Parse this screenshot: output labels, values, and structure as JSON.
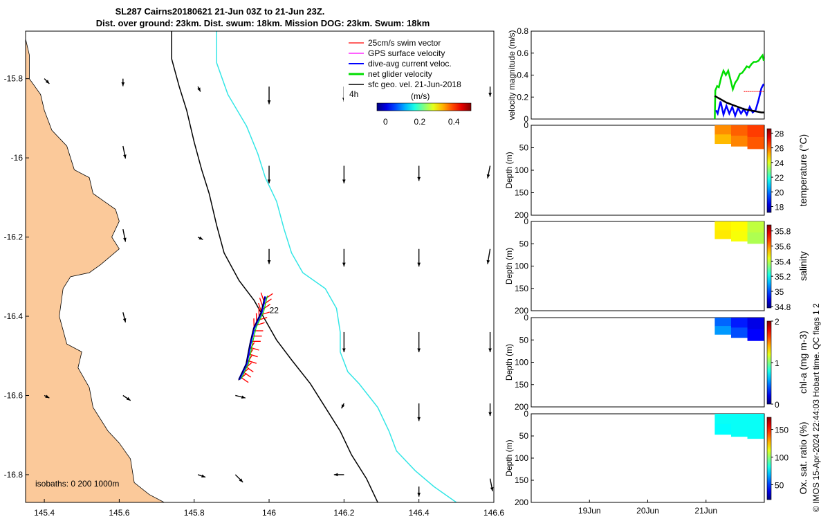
{
  "title_line1": "SL287 Cairns20180621 21-Jun 03Z to 21-Jun 23Z.",
  "title_line2": "Dist. over ground: 23km. Dist. swum: 18km. Mission DOG: 23km. Swum: 18km",
  "copyright": "© IMOS 15-Apr-2024 22:44:03 Hobart time. QC flags 1  2",
  "colors": {
    "land": "#fbc99a",
    "isobath_0": "#000000",
    "isobath_200": "#000000",
    "isobath_1000": "#33e6e6",
    "swim": "#ff0000",
    "gps": "#ff00ff",
    "dive": "#0000ff",
    "net": "#00dd00",
    "geo": "#000000"
  },
  "chart_data": [
    {
      "type": "map",
      "xlim": [
        145.35,
        146.6
      ],
      "ylim": [
        -16.87,
        -15.68
      ],
      "x_ticks": [
        145.4,
        145.6,
        145.8,
        146,
        146.2,
        146.4,
        146.6
      ],
      "x_tick_labels": [
        "145.4",
        "145.6",
        "145.8",
        "146",
        "146.2",
        "146.4",
        "146.6"
      ],
      "y_ticks": [
        -15.8,
        -16,
        -16.2,
        -16.4,
        -16.6,
        -16.8
      ],
      "y_tick_labels": [
        "-15.8",
        "-16",
        "-16.2",
        "-16.4",
        "-16.6",
        "-16.8"
      ],
      "legend": {
        "entries": [
          "25cm/s swim vector",
          "GPS surface velocity",
          "dive-avg current veloc.",
          "net glider velocity",
          "sfc geo. vel. 21-Jun-2018"
        ],
        "time_label": "4h",
        "colorbar_label": "(m/s)",
        "colorbar_ticks": [
          "0",
          "0.2",
          "0.4"
        ],
        "colorbar_range": [
          -0.05,
          0.5
        ]
      },
      "isobaths_label": "isobaths: 0   200  1000m",
      "isobaths": [
        "0",
        "200",
        "1000"
      ],
      "annotation": "22",
      "coastline": [
        [
          145.35,
          -15.7
        ],
        [
          145.36,
          -15.74
        ],
        [
          145.36,
          -15.8
        ],
        [
          145.39,
          -15.84
        ],
        [
          145.4,
          -15.88
        ],
        [
          145.42,
          -15.93
        ],
        [
          145.46,
          -15.97
        ],
        [
          145.48,
          -16.03
        ],
        [
          145.52,
          -16.05
        ],
        [
          145.53,
          -16.09
        ],
        [
          145.56,
          -16.11
        ],
        [
          145.59,
          -16.13
        ],
        [
          145.6,
          -16.16
        ],
        [
          145.58,
          -16.2
        ],
        [
          145.6,
          -16.23
        ],
        [
          145.55,
          -16.27
        ],
        [
          145.52,
          -16.29
        ],
        [
          145.47,
          -16.3
        ],
        [
          145.45,
          -16.33
        ],
        [
          145.44,
          -16.4
        ],
        [
          145.46,
          -16.47
        ],
        [
          145.5,
          -16.49
        ],
        [
          145.49,
          -16.53
        ],
        [
          145.52,
          -16.58
        ],
        [
          145.53,
          -16.63
        ],
        [
          145.57,
          -16.69
        ],
        [
          145.6,
          -16.72
        ],
        [
          145.63,
          -16.76
        ],
        [
          145.64,
          -16.82
        ],
        [
          145.68,
          -16.85
        ],
        [
          145.72,
          -16.87
        ]
      ],
      "iso0": [
        [
          145.74,
          -15.68
        ],
        [
          145.74,
          -15.75
        ],
        [
          145.76,
          -15.82
        ],
        [
          145.78,
          -15.88
        ],
        [
          145.8,
          -15.96
        ],
        [
          145.82,
          -16.03
        ],
        [
          145.84,
          -16.09
        ],
        [
          145.86,
          -16.17
        ],
        [
          145.88,
          -16.24
        ],
        [
          145.92,
          -16.31
        ],
        [
          145.96,
          -16.36
        ],
        [
          145.99,
          -16.41
        ],
        [
          146.02,
          -16.46
        ],
        [
          146.06,
          -16.51
        ],
        [
          146.11,
          -16.57
        ],
        [
          146.15,
          -16.63
        ],
        [
          146.19,
          -16.69
        ],
        [
          146.22,
          -16.75
        ],
        [
          146.26,
          -16.81
        ],
        [
          146.29,
          -16.87
        ]
      ],
      "iso1000": [
        [
          145.86,
          -15.68
        ],
        [
          145.86,
          -15.76
        ],
        [
          145.89,
          -15.84
        ],
        [
          145.94,
          -15.92
        ],
        [
          145.97,
          -15.99
        ],
        [
          145.99,
          -16.05
        ],
        [
          146.02,
          -16.11
        ],
        [
          146.04,
          -16.18
        ],
        [
          146.06,
          -16.24
        ],
        [
          146.09,
          -16.29
        ],
        [
          146.15,
          -16.33
        ],
        [
          146.18,
          -16.38
        ],
        [
          146.19,
          -16.44
        ],
        [
          146.19,
          -16.49
        ],
        [
          146.21,
          -16.54
        ],
        [
          146.24,
          -16.57
        ],
        [
          146.29,
          -16.63
        ],
        [
          146.32,
          -16.69
        ],
        [
          146.34,
          -16.74
        ],
        [
          146.39,
          -16.79
        ],
        [
          146.44,
          -16.83
        ],
        [
          146.5,
          -16.87
        ]
      ],
      "track": [
        [
          145.92,
          -16.56
        ],
        [
          145.94,
          -16.52
        ],
        [
          145.95,
          -16.47
        ],
        [
          145.96,
          -16.43
        ],
        [
          145.98,
          -16.39
        ],
        [
          145.99,
          -16.35
        ]
      ],
      "geo_vectors": {
        "scale": 0.55,
        "items": [
          [
            145.4,
            -15.8,
            0.02,
            -0.02
          ],
          [
            145.61,
            -15.8,
            0.0,
            -0.03
          ],
          [
            145.81,
            -15.82,
            0.01,
            -0.02
          ],
          [
            146.0,
            -15.82,
            0.0,
            -0.07
          ],
          [
            146.2,
            -15.82,
            0.0,
            -0.06
          ],
          [
            146.4,
            -15.82,
            0.0,
            -0.06
          ],
          [
            146.59,
            -15.82,
            0.0,
            -0.04
          ],
          [
            145.61,
            -15.97,
            0.01,
            -0.05
          ],
          [
            146.0,
            -16.02,
            0.0,
            -0.07
          ],
          [
            146.2,
            -16.02,
            0.0,
            -0.07
          ],
          [
            146.4,
            -16.02,
            0.0,
            -0.06
          ],
          [
            146.59,
            -16.02,
            -0.01,
            -0.05
          ],
          [
            145.61,
            -16.18,
            0.01,
            -0.05
          ],
          [
            145.81,
            -16.2,
            0.02,
            -0.01
          ],
          [
            146.0,
            -16.23,
            0.0,
            -0.06
          ],
          [
            146.2,
            -16.23,
            0.0,
            -0.07
          ],
          [
            146.4,
            -16.23,
            0.0,
            -0.07
          ],
          [
            146.59,
            -16.23,
            -0.01,
            -0.06
          ],
          [
            145.61,
            -16.39,
            0.01,
            -0.04
          ],
          [
            146.2,
            -16.44,
            0.0,
            -0.08
          ],
          [
            146.4,
            -16.44,
            0.0,
            -0.08
          ],
          [
            146.59,
            -16.44,
            0.0,
            -0.08
          ],
          [
            145.4,
            -16.6,
            0.02,
            -0.01
          ],
          [
            145.61,
            -16.6,
            0.03,
            -0.02
          ],
          [
            145.91,
            -16.6,
            0.04,
            -0.01
          ],
          [
            146.2,
            -16.62,
            -0.01,
            -0.02
          ],
          [
            146.4,
            -16.62,
            0.0,
            -0.07
          ],
          [
            146.59,
            -16.62,
            0.0,
            -0.05
          ],
          [
            145.81,
            -16.8,
            0.03,
            -0.01
          ],
          [
            145.91,
            -16.8,
            0.03,
            -0.03
          ],
          [
            146.2,
            -16.8,
            -0.04,
            0.0
          ],
          [
            146.4,
            -16.83,
            0.0,
            -0.04
          ],
          [
            146.59,
            -16.81,
            0.01,
            -0.05
          ]
        ]
      }
    },
    {
      "type": "line",
      "ylabel": "velocity magnitude (m/s)",
      "ylim": [
        0,
        0.8
      ],
      "y_ticks": [
        0,
        0.2,
        0.4,
        0.6,
        0.8
      ],
      "y_tick_labels": [
        "0",
        "0.2",
        "0.4",
        "0.6",
        "0.8"
      ],
      "xlim": [
        18.0,
        22.0
      ],
      "series": [
        {
          "color": "#00dd00",
          "x": [
            21.15,
            21.16,
            21.19,
            21.22,
            21.26,
            21.3,
            21.34,
            21.38,
            21.42,
            21.46,
            21.5,
            21.54,
            21.58,
            21.62,
            21.66,
            21.7,
            21.74,
            21.78,
            21.82,
            21.86,
            21.9,
            21.94,
            21.97,
            21.99
          ],
          "y": [
            0.0,
            0.26,
            0.3,
            0.29,
            0.38,
            0.44,
            0.4,
            0.44,
            0.36,
            0.27,
            0.33,
            0.36,
            0.41,
            0.42,
            0.45,
            0.48,
            0.47,
            0.5,
            0.52,
            0.52,
            0.53,
            0.56,
            0.58,
            0.53
          ]
        },
        {
          "color": "#0000ff",
          "x": [
            21.17,
            21.2,
            21.25,
            21.3,
            21.35,
            21.4,
            21.45,
            21.5,
            21.55,
            21.6,
            21.65,
            21.7,
            21.75,
            21.8,
            21.85,
            21.9,
            21.95,
            21.99
          ],
          "y": [
            0.08,
            0.05,
            0.16,
            0.04,
            0.12,
            0.05,
            0.11,
            0.03,
            0.1,
            0.05,
            0.09,
            0.04,
            0.11,
            0.06,
            0.08,
            0.17,
            0.28,
            0.32
          ]
        },
        {
          "color": "#000000",
          "x": [
            21.15,
            21.25,
            21.35,
            21.45,
            21.55,
            21.65,
            21.75,
            21.85,
            21.95,
            22.0
          ],
          "y": [
            0.21,
            0.18,
            0.15,
            0.13,
            0.11,
            0.09,
            0.08,
            0.07,
            0.06,
            0.06
          ]
        },
        {
          "color": "#ff0000",
          "x": [
            21.65,
            21.99
          ],
          "y": [
            0.25,
            0.25
          ]
        }
      ]
    },
    {
      "type": "heatmap",
      "ylabel": "Depth (m)",
      "ylim": [
        0,
        200
      ],
      "y_ticks": [
        0,
        50,
        100,
        150,
        200
      ],
      "y_tick_labels": [
        "0",
        "50",
        "100",
        "150",
        "200"
      ],
      "colorbar_label": "temperature (°C)",
      "colorbar_range": [
        17.2,
        28.6
      ],
      "colorbar_ticks": [
        18,
        20,
        22,
        24,
        26,
        28
      ],
      "colorbar_tick_labels": [
        "18",
        "20",
        "22",
        "24",
        "26",
        "28"
      ],
      "x_range": [
        21.15,
        21.99
      ],
      "bottom_depth": [
        38,
        55
      ],
      "values": [
        [
          25.6,
          26.1,
          26.5
        ],
        [
          25.1,
          25.7,
          26.2
        ]
      ]
    },
    {
      "type": "heatmap",
      "ylabel": "Depth (m)",
      "ylim": [
        0,
        200
      ],
      "y_ticks": [
        0,
        50,
        100,
        150,
        200
      ],
      "y_tick_labels": [
        "0",
        "50",
        "100",
        "150",
        "200"
      ],
      "colorbar_label": "salinity",
      "colorbar_range": [
        34.78,
        35.88
      ],
      "colorbar_ticks": [
        34.8,
        35,
        35.2,
        35.4,
        35.6,
        35.8
      ],
      "colorbar_tick_labels": [
        "34.8",
        "35",
        "35.2",
        "35.4",
        "35.6",
        "35.8"
      ],
      "x_range": [
        21.15,
        21.99
      ],
      "bottom_depth": [
        36,
        52
      ],
      "values": [
        [
          35.48,
          35.47,
          35.4
        ],
        [
          35.49,
          35.46,
          35.38
        ]
      ]
    },
    {
      "type": "heatmap",
      "ylabel": "Depth (m)",
      "ylim": [
        0,
        200
      ],
      "y_ticks": [
        0,
        50,
        100,
        150,
        200
      ],
      "y_tick_labels": [
        "0",
        "50",
        "100",
        "150",
        "200"
      ],
      "colorbar_label": "chl-a (mg m-3)",
      "colorbar_range": [
        0,
        2
      ],
      "colorbar_ticks": [
        0,
        1,
        2
      ],
      "colorbar_tick_labels": [
        "0",
        "1",
        "2"
      ],
      "x_range": [
        21.15,
        21.99
      ],
      "bottom_depth": [
        34,
        55
      ],
      "values": [
        [
          0.45,
          0.3,
          0.2
        ],
        [
          0.55,
          0.4,
          0.25
        ]
      ]
    },
    {
      "type": "heatmap",
      "ylabel": "Depth (m)",
      "ylim": [
        0,
        200
      ],
      "y_ticks": [
        0,
        50,
        100,
        150,
        200
      ],
      "y_tick_labels": [
        "0",
        "50",
        "100",
        "150",
        "200"
      ],
      "colorbar_label": "Ox. sat. ratio (%)",
      "colorbar_range": [
        23,
        172
      ],
      "colorbar_ticks": [
        50,
        100,
        150
      ],
      "colorbar_tick_labels": [
        "50",
        "100",
        "150"
      ],
      "x_range": [
        21.15,
        21.99
      ],
      "bottom_depth": [
        44,
        58
      ],
      "values": [
        [
          80,
          80,
          80
        ],
        [
          79,
          80,
          80
        ]
      ],
      "x_ticks": [
        19,
        20,
        21
      ],
      "x_tick_labels": [
        "19Jun",
        "20Jun",
        "21Jun"
      ]
    }
  ]
}
